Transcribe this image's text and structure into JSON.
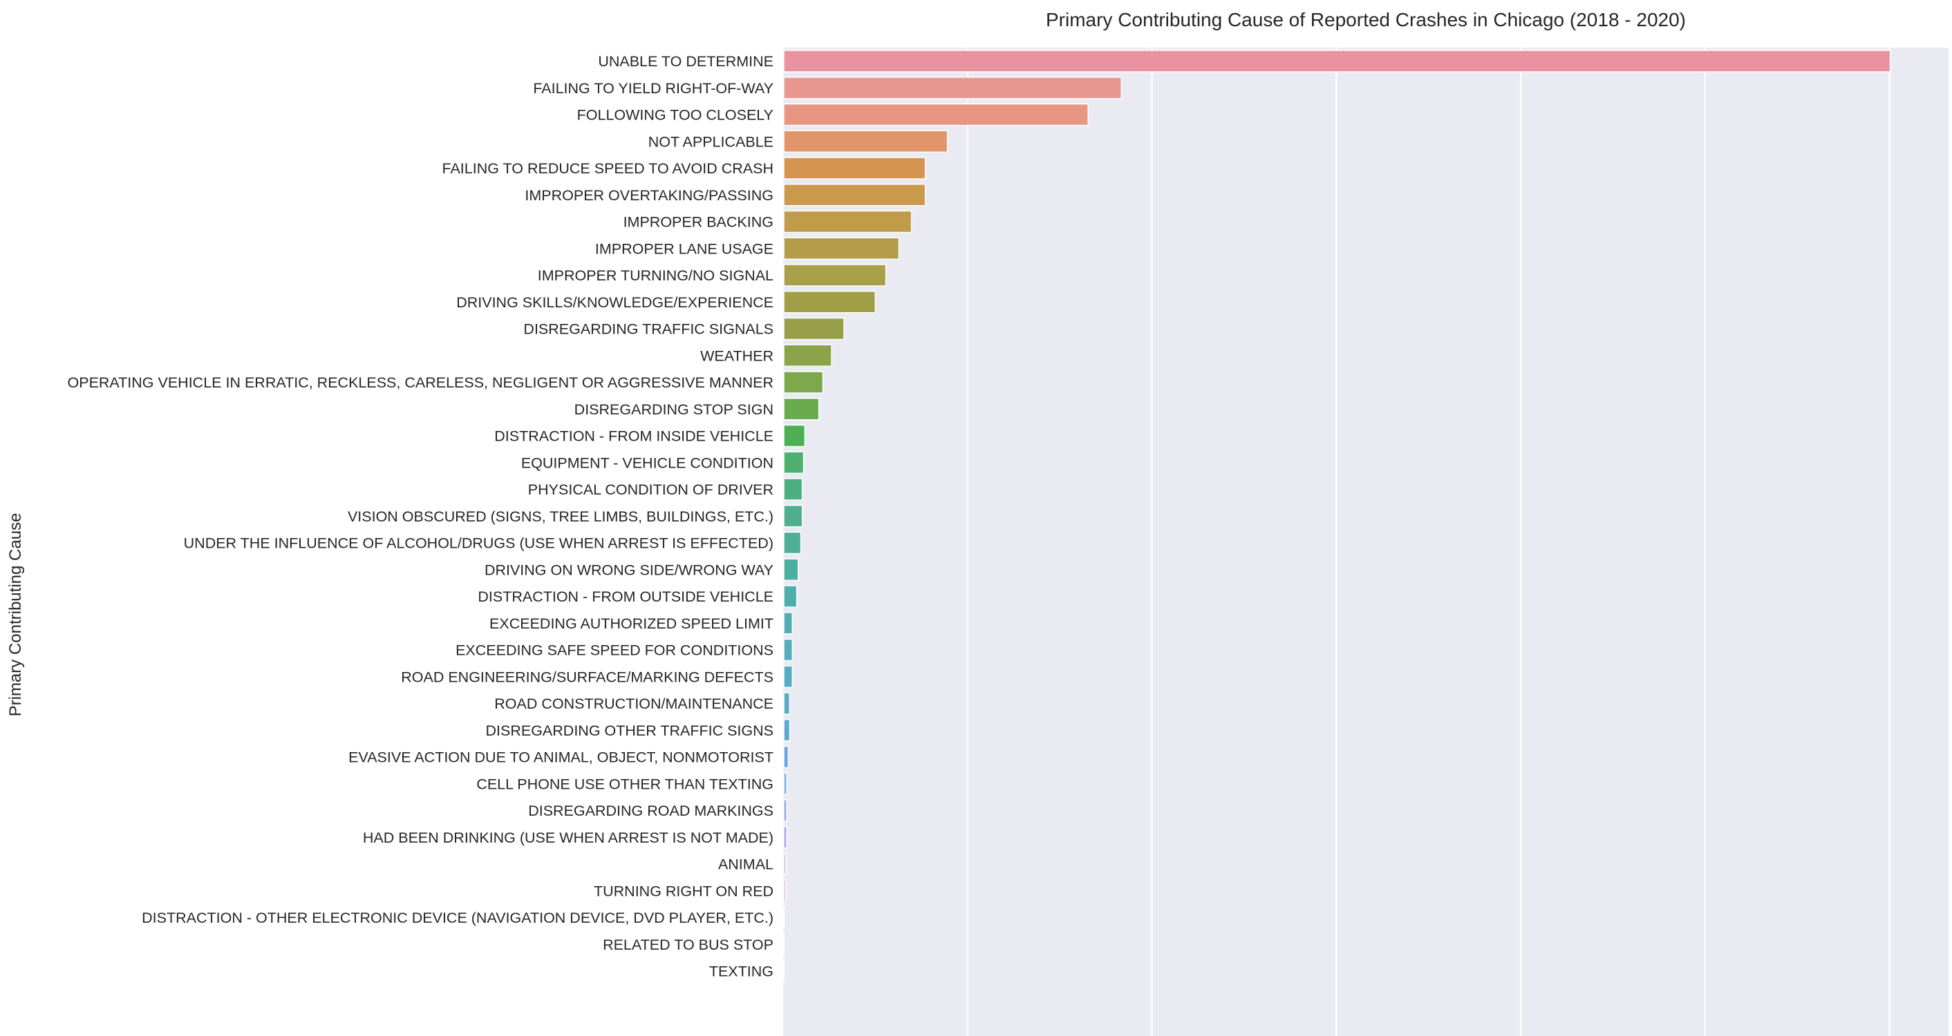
{
  "chart_data": {
    "type": "bar",
    "orientation": "horizontal",
    "title": "Primary Contributing Cause of Reported Crashes in Chicago (2018 - 2020)",
    "xlabel": "",
    "ylabel": "Primary Contributing Cause",
    "value_unit": "relative crash count (1 unit = 1 vertical gridline interval; x tick labels not visible)",
    "xlim": [
      0,
      6.32
    ],
    "grid": true,
    "legend": "none",
    "background_color": "#eaeaf2",
    "grid_color": "#ffffff",
    "categories": [
      "UNABLE TO DETERMINE",
      "FAILING TO YIELD RIGHT-OF-WAY",
      "FOLLOWING TOO CLOSELY",
      "NOT APPLICABLE",
      "FAILING TO REDUCE SPEED TO AVOID CRASH",
      "IMPROPER OVERTAKING/PASSING",
      "IMPROPER BACKING",
      "IMPROPER LANE USAGE",
      "IMPROPER TURNING/NO SIGNAL",
      "DRIVING SKILLS/KNOWLEDGE/EXPERIENCE",
      "DISREGARDING TRAFFIC SIGNALS",
      "WEATHER",
      "OPERATING VEHICLE IN ERRATIC, RECKLESS, CARELESS, NEGLIGENT OR AGGRESSIVE MANNER",
      "DISREGARDING STOP SIGN",
      "DISTRACTION - FROM INSIDE VEHICLE",
      "EQUIPMENT - VEHICLE CONDITION",
      "PHYSICAL CONDITION OF DRIVER",
      "VISION OBSCURED (SIGNS, TREE LIMBS, BUILDINGS, ETC.)",
      "UNDER THE INFLUENCE OF ALCOHOL/DRUGS (USE WHEN ARREST IS EFFECTED)",
      "DRIVING ON WRONG SIDE/WRONG WAY",
      "DISTRACTION - FROM OUTSIDE VEHICLE",
      "EXCEEDING AUTHORIZED SPEED LIMIT",
      "EXCEEDING SAFE SPEED FOR CONDITIONS",
      "ROAD ENGINEERING/SURFACE/MARKING DEFECTS",
      "ROAD CONSTRUCTION/MAINTENANCE",
      "DISREGARDING OTHER TRAFFIC SIGNS",
      "EVASIVE ACTION DUE TO ANIMAL, OBJECT, NONMOTORIST",
      "CELL PHONE USE OTHER THAN TEXTING",
      "DISREGARDING ROAD MARKINGS",
      "HAD BEEN DRINKING (USE WHEN ARREST IS NOT MADE)",
      "ANIMAL",
      "TURNING RIGHT ON RED",
      "DISTRACTION - OTHER ELECTRONIC DEVICE (NAVIGATION DEVICE, DVD PLAYER, ETC.)",
      "RELATED TO BUS STOP",
      "TEXTING"
    ],
    "values": [
      6.0,
      1.83,
      1.65,
      0.887,
      0.767,
      0.767,
      0.692,
      0.624,
      0.553,
      0.496,
      0.326,
      0.259,
      0.212,
      0.19,
      0.114,
      0.107,
      0.1,
      0.1,
      0.092,
      0.078,
      0.07,
      0.046,
      0.046,
      0.046,
      0.031,
      0.032,
      0.024,
      0.016,
      0.015,
      0.015,
      0.01,
      0.01,
      0.002,
      0.001,
      0.001
    ],
    "colors": [
      "#e8939f",
      "#e8968f",
      "#e69681",
      "#e2946a",
      "#d5944f",
      "#c9994e",
      "#c09b4a",
      "#b39c4a",
      "#a89f49",
      "#a09f48",
      "#979f48",
      "#8ba349",
      "#7da84b",
      "#6aab4d",
      "#4caf55",
      "#4db071",
      "#4dae82",
      "#4daf8e",
      "#4eae97",
      "#4eaea0",
      "#4fadaa",
      "#51adb2",
      "#53adbb",
      "#55acc4",
      "#58abcd",
      "#5ea9d6",
      "#6ca6e0",
      "#7fb0e0",
      "#8ea6e4",
      "#a89ee8",
      "#c4a5ef",
      "#d7a8ef",
      "#e091d3",
      "#e691c3",
      "#e992b4"
    ],
    "gridlines_at": [
      1,
      2,
      3,
      4,
      5,
      6
    ]
  }
}
